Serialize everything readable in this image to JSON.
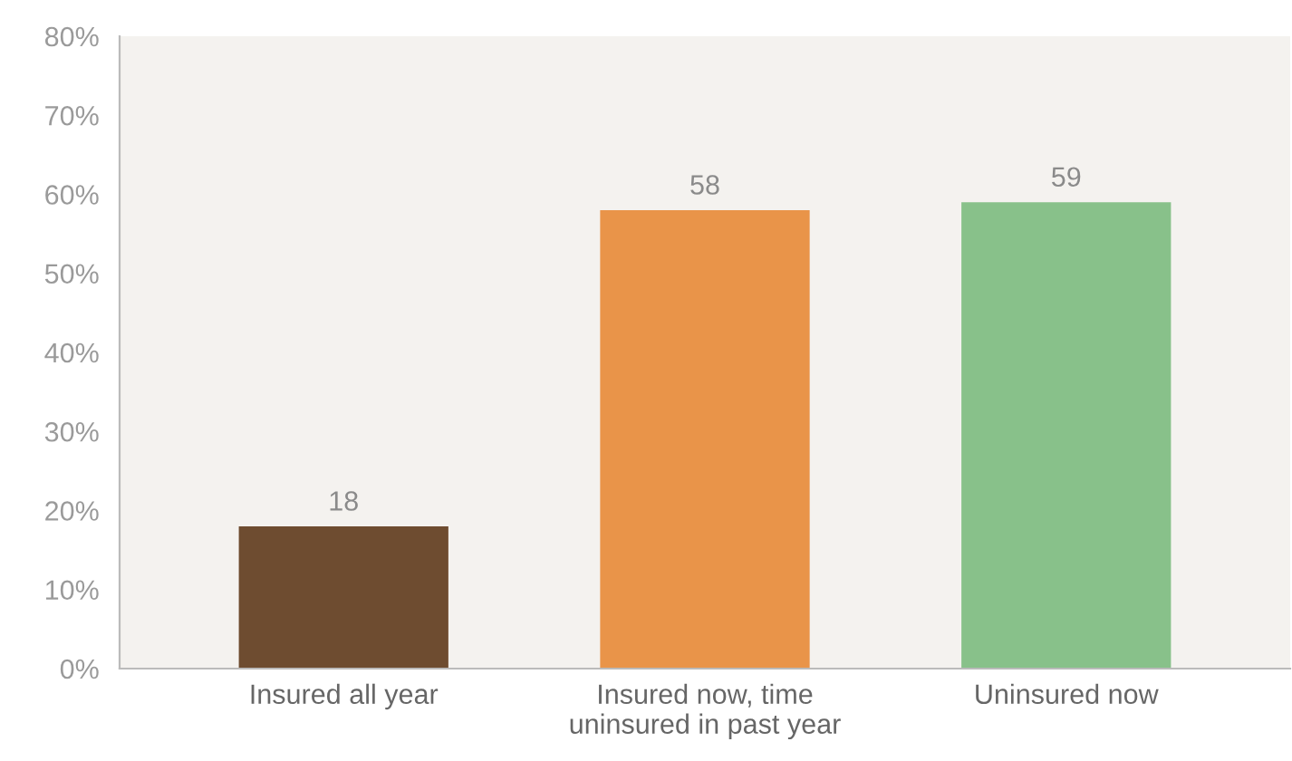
{
  "chart_data": {
    "type": "bar",
    "categories": [
      "Insured all year",
      "Insured now, time\nuninsured in past year",
      "Uninsured now"
    ],
    "values": [
      18,
      58,
      59
    ],
    "colors": [
      "#6e4c30",
      "#e99449",
      "#88c18a"
    ],
    "data_labels": true,
    "ylim": [
      0,
      80
    ],
    "yticks": [
      {
        "value": 0,
        "label": "0%"
      },
      {
        "value": 10,
        "label": "10%"
      },
      {
        "value": 20,
        "label": "20%"
      },
      {
        "value": 30,
        "label": "30%"
      },
      {
        "value": 40,
        "label": "40%"
      },
      {
        "value": 50,
        "label": "50%"
      },
      {
        "value": 60,
        "label": "60%"
      },
      {
        "value": 70,
        "label": "70%"
      },
      {
        "value": 80,
        "label": "80%"
      }
    ],
    "grid": false,
    "legend": false
  }
}
